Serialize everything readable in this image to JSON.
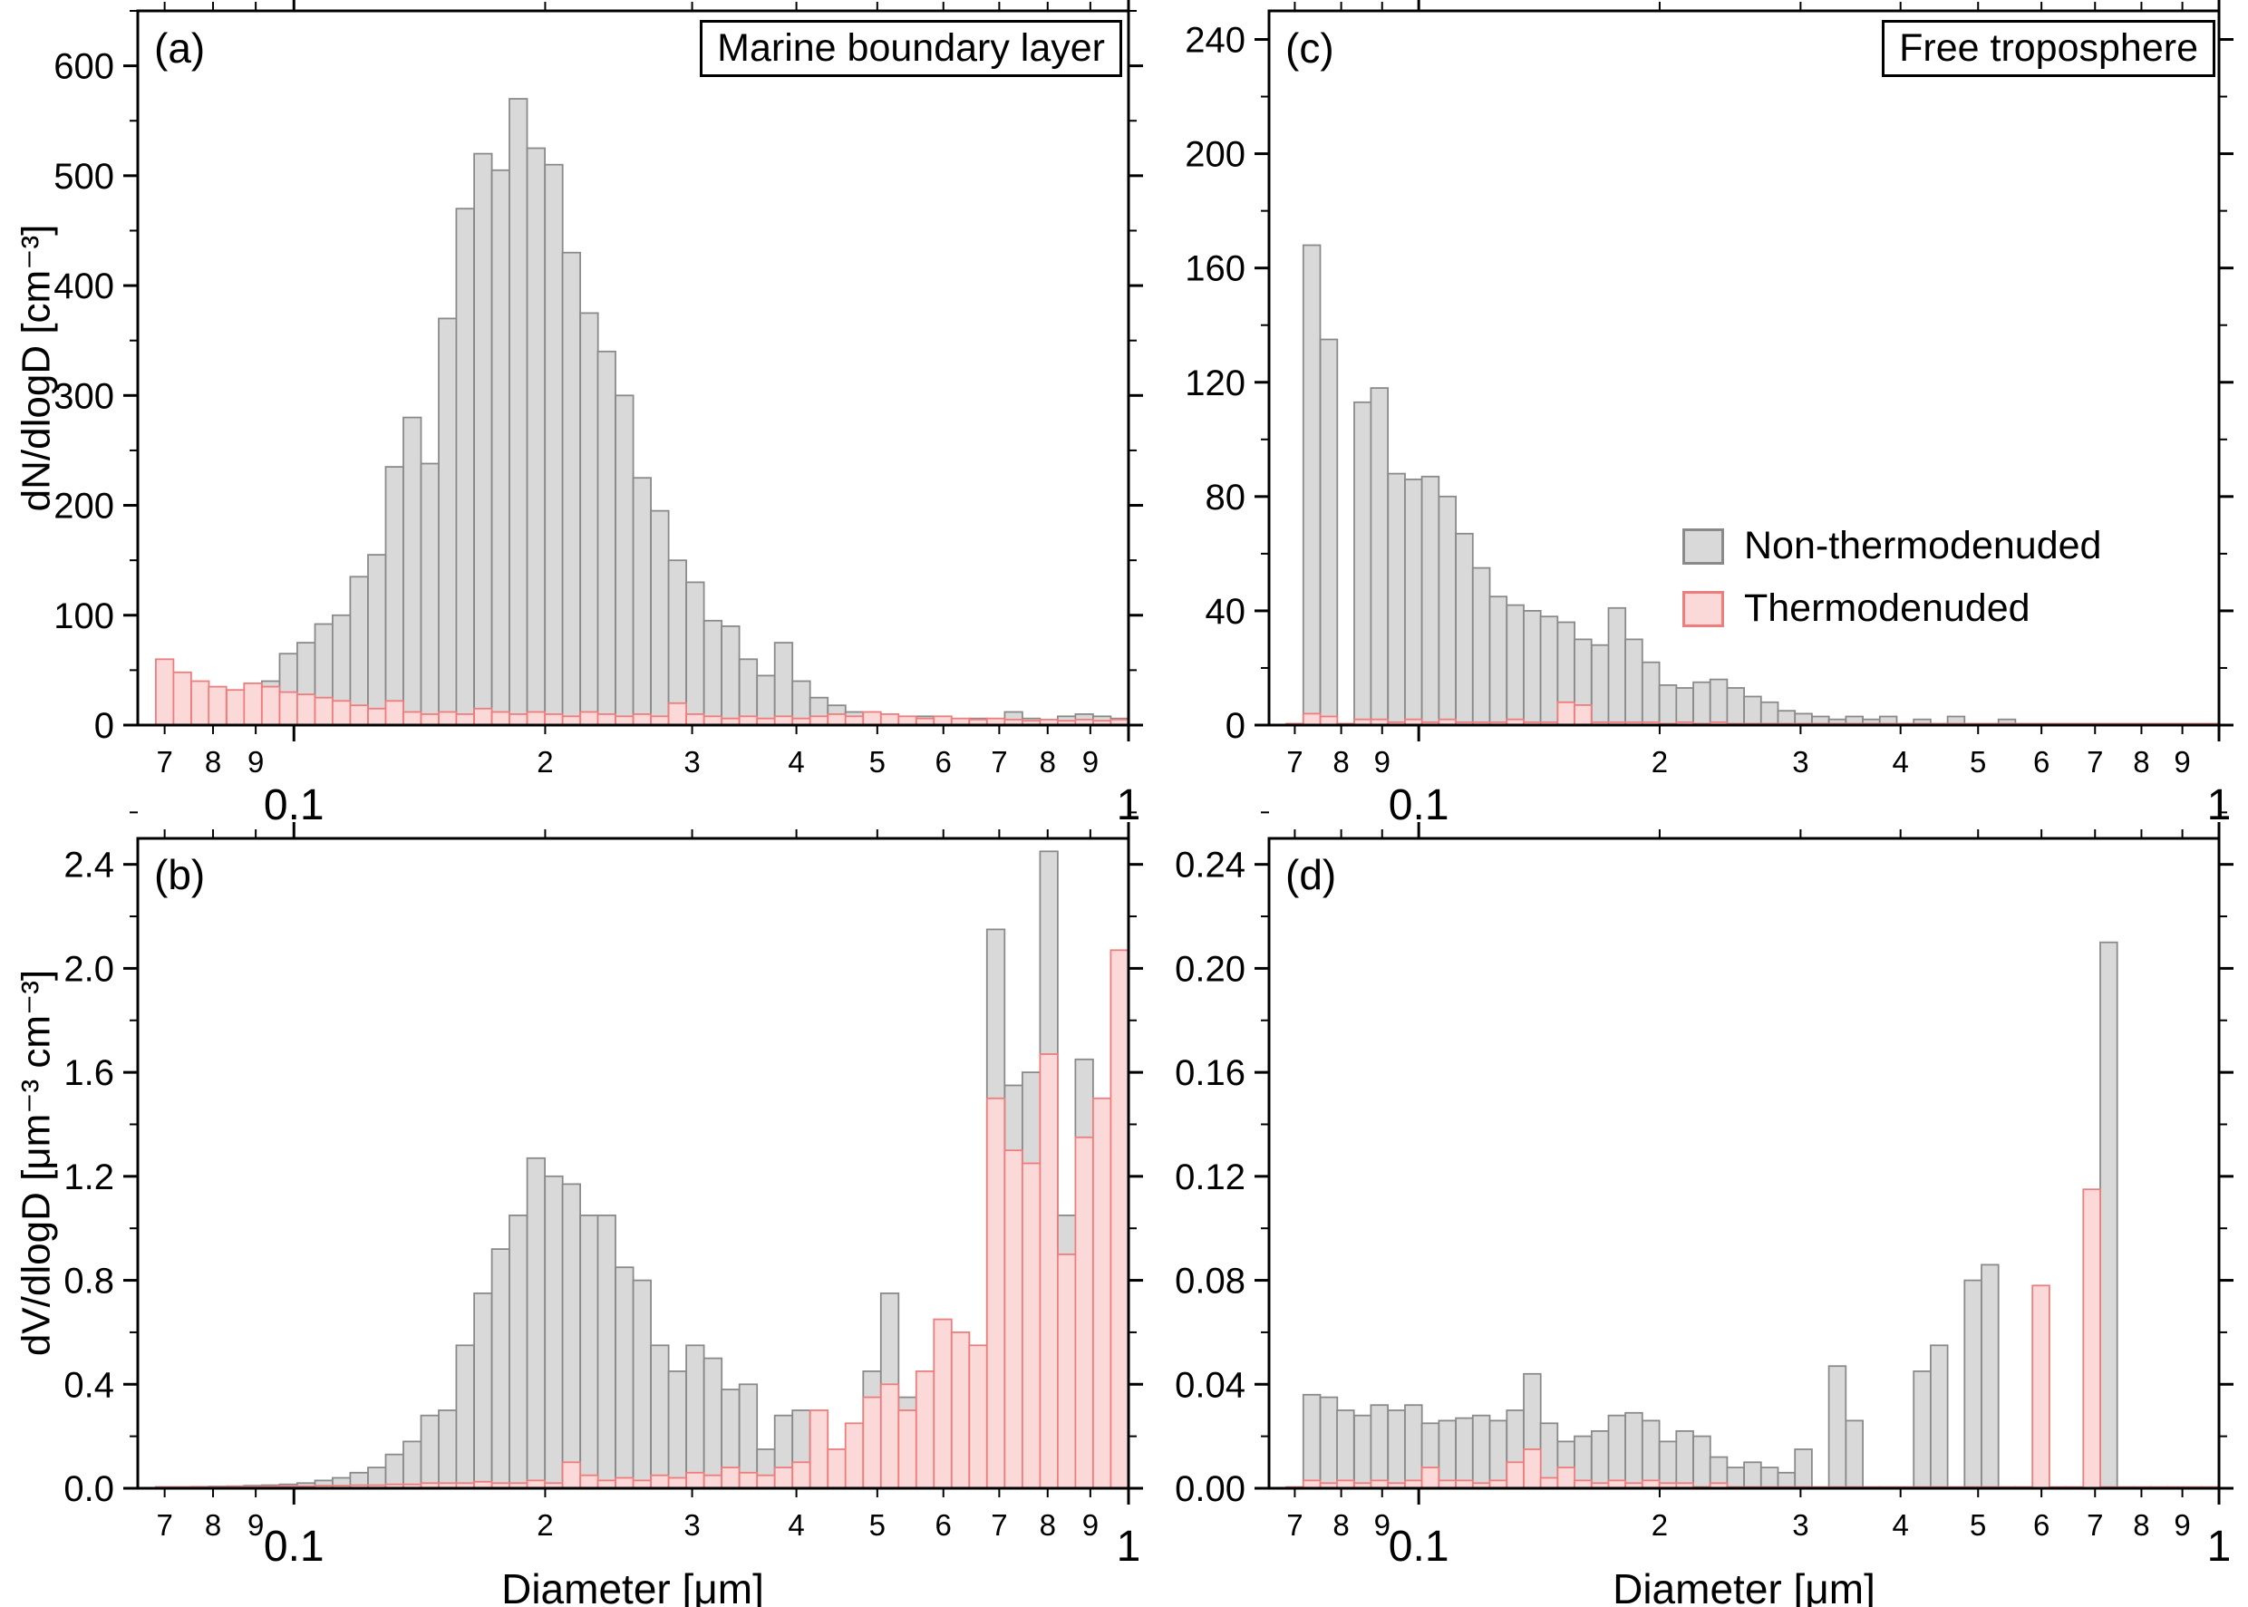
{
  "chart_data": {
    "type": "bar",
    "description": "Aerosol size distributions, 2x2 histogram panels on log x-axes",
    "xlabel": "Diameter [μm]",
    "legend": {
      "items": [
        {
          "label": "Non-thermodenuded"
        },
        {
          "label": "Thermodenuded"
        }
      ],
      "position": "panel-c-middle-right"
    },
    "colors": {
      "non_thermodenuded_fill": "#d9d9d9",
      "non_thermodenuded_stroke": "#8a8a8a",
      "thermodenuded_fill": "#fbd9d9",
      "thermodenuded_stroke": "#ee7d7d",
      "axis": "#000000"
    },
    "x_axis": {
      "scale": "log",
      "range": [
        0.065,
        1.0
      ],
      "major_ticks": {
        "values": [
          0.1,
          1
        ],
        "labels": [
          "0.1",
          "1"
        ]
      },
      "minor_ticks": {
        "values": [
          0.07,
          0.08,
          0.09,
          0.2,
          0.3,
          0.4,
          0.5,
          0.6,
          0.7,
          0.8,
          0.9
        ],
        "labels": [
          "7",
          "8",
          "9",
          "2",
          "3",
          "4",
          "5",
          "6",
          "7",
          "8",
          "9"
        ]
      }
    },
    "x_bins": [
      0.07,
      0.0735,
      0.0772,
      0.081,
      0.0851,
      0.0893,
      0.0938,
      0.0985,
      0.1034,
      0.1086,
      0.114,
      0.1197,
      0.1257,
      0.132,
      0.1386,
      0.1455,
      0.1528,
      0.1604,
      0.1685,
      0.1769,
      0.1857,
      0.195,
      0.2048,
      0.215,
      0.2258,
      0.237,
      0.2489,
      0.2613,
      0.2744,
      0.2881,
      0.3025,
      0.3177,
      0.3335,
      0.3502,
      0.3677,
      0.3861,
      0.4054,
      0.4257,
      0.447,
      0.4693,
      0.4928,
      0.5174,
      0.5433,
      0.5705,
      0.599,
      0.6289,
      0.6604,
      0.6934,
      0.7281,
      0.7645,
      0.8027,
      0.8428,
      0.885,
      0.9292,
      0.9757
    ],
    "panels": [
      {
        "id": "a",
        "label": "(a)",
        "title": "Marine boundary layer",
        "ylabel": "dN/dlogD [cm⁻³]",
        "ylim": [
          0,
          650
        ],
        "yminor_step": 50,
        "yticks": {
          "values": [
            0,
            100,
            200,
            300,
            400,
            500,
            600
          ],
          "labels": [
            "0",
            "100",
            "200",
            "300",
            "400",
            "500",
            "600"
          ]
        },
        "series": [
          {
            "name": "Non-thermodenuded",
            "values": [
              8,
              10,
              14,
              18,
              25,
              32,
              40,
              65,
              75,
              92,
              100,
              135,
              155,
              235,
              280,
              238,
              370,
              470,
              520,
              505,
              570,
              525,
              510,
              430,
              375,
              340,
              300,
              225,
              195,
              150,
              130,
              95,
              90,
              60,
              45,
              75,
              40,
              25,
              18,
              12,
              10,
              8,
              6,
              8,
              6,
              5,
              6,
              5,
              12,
              6,
              5,
              8,
              10,
              8,
              6
            ]
          },
          {
            "name": "Thermodenuded",
            "values": [
              60,
              48,
              40,
              35,
              32,
              38,
              35,
              30,
              28,
              25,
              22,
              18,
              15,
              22,
              12,
              10,
              12,
              10,
              15,
              12,
              10,
              12,
              10,
              8,
              12,
              10,
              8,
              10,
              8,
              20,
              10,
              8,
              6,
              8,
              6,
              8,
              6,
              8,
              10,
              8,
              12,
              10,
              8,
              6,
              8,
              6,
              5,
              6,
              5,
              4,
              5,
              4,
              5,
              4,
              5
            ]
          }
        ]
      },
      {
        "id": "b",
        "label": "(b)",
        "title": "",
        "ylabel": "dV/dlogD [μm⁻³ cm⁻³]",
        "ylim": [
          0,
          2.5
        ],
        "yminor_step": 0.2,
        "yticks": {
          "values": [
            0,
            0.4,
            0.8,
            1.2,
            1.6,
            2.0,
            2.4
          ],
          "labels": [
            "0.0",
            "0.4",
            "0.8",
            "1.2",
            "1.6",
            "2.0",
            "2.4"
          ]
        },
        "series": [
          {
            "name": "Non-thermodenuded",
            "values": [
              0.005,
              0.005,
              0.006,
              0.007,
              0.008,
              0.01,
              0.012,
              0.015,
              0.02,
              0.03,
              0.04,
              0.06,
              0.08,
              0.13,
              0.18,
              0.28,
              0.3,
              0.55,
              0.75,
              0.92,
              1.05,
              1.27,
              1.2,
              1.17,
              1.05,
              1.05,
              0.85,
              0.8,
              0.55,
              0.45,
              0.55,
              0.5,
              0.38,
              0.4,
              0.15,
              0.28,
              0.3,
              0.22,
              0.1,
              0.15,
              0.45,
              0.75,
              0.35,
              0.2,
              0.35,
              0.6,
              0.35,
              2.15,
              1.55,
              1.6,
              2.45,
              1.05,
              1.65,
              1.3,
              0.9
            ]
          },
          {
            "name": "Thermodenuded",
            "values": [
              0.005,
              0.005,
              0.005,
              0.005,
              0.006,
              0.006,
              0.007,
              0.008,
              0.008,
              0.01,
              0.01,
              0.012,
              0.012,
              0.015,
              0.015,
              0.02,
              0.02,
              0.02,
              0.025,
              0.02,
              0.02,
              0.03,
              0.02,
              0.1,
              0.05,
              0.03,
              0.04,
              0.03,
              0.05,
              0.04,
              0.06,
              0.05,
              0.08,
              0.06,
              0.05,
              0.08,
              0.1,
              0.3,
              0.15,
              0.25,
              0.35,
              0.4,
              0.3,
              0.45,
              0.65,
              0.6,
              0.55,
              1.5,
              1.3,
              1.25,
              1.67,
              0.9,
              1.35,
              1.5,
              2.07
            ]
          }
        ]
      },
      {
        "id": "c",
        "label": "(c)",
        "title": "Free troposphere",
        "ylabel": "",
        "ylim": [
          0,
          250
        ],
        "yminor_step": 20,
        "yticks": {
          "values": [
            0,
            40,
            80,
            120,
            160,
            200,
            240
          ],
          "labels": [
            "0",
            "40",
            "80",
            "120",
            "160",
            "200",
            "240"
          ]
        },
        "series": [
          {
            "name": "Non-thermodenuded",
            "values": [
              0,
              168,
              135,
              0,
              113,
              118,
              88,
              86,
              87,
              80,
              67,
              55,
              45,
              42,
              40,
              38,
              36,
              30,
              28,
              41,
              30,
              22,
              14,
              13,
              15,
              16,
              13,
              10,
              8,
              5,
              4,
              3,
              2,
              3,
              2,
              3,
              0,
              2,
              0,
              3,
              0,
              0,
              2,
              0,
              0,
              0,
              0,
              0,
              0,
              0,
              0,
              0,
              0,
              0,
              0
            ]
          },
          {
            "name": "Thermodenuded",
            "values": [
              0.5,
              4,
              3,
              0.5,
              2,
              2,
              1,
              2,
              1,
              2,
              1,
              1,
              1,
              2,
              1,
              1,
              8,
              7,
              1,
              1,
              1,
              1,
              0.5,
              1,
              0.5,
              1,
              0.5,
              0.5,
              0.5,
              0.5,
              0.5,
              0.5,
              0.5,
              0.5,
              0.5,
              0.5,
              0.5,
              0.5,
              0.5,
              0.5,
              0.5,
              0.5,
              0.5,
              0.5,
              0.5,
              0.5,
              0.5,
              0.5,
              0.5,
              0.5,
              0.5,
              0.5,
              0.5,
              0.5,
              0.5
            ]
          }
        ]
      },
      {
        "id": "d",
        "label": "(d)",
        "title": "",
        "ylabel": "",
        "ylim": [
          0,
          0.25
        ],
        "yminor_step": 0.02,
        "yticks": {
          "values": [
            0,
            0.04,
            0.08,
            0.12,
            0.16,
            0.2,
            0.24
          ],
          "labels": [
            "0.00",
            "0.04",
            "0.08",
            "0.12",
            "0.16",
            "0.20",
            "0.24"
          ]
        },
        "series": [
          {
            "name": "Non-thermodenuded",
            "values": [
              0,
              0.036,
              0.035,
              0.03,
              0.028,
              0.032,
              0.03,
              0.032,
              0.025,
              0.026,
              0.027,
              0.028,
              0.026,
              0.03,
              0.044,
              0.025,
              0.018,
              0.02,
              0.022,
              0.028,
              0.029,
              0.026,
              0.018,
              0.022,
              0.02,
              0.012,
              0.008,
              0.01,
              0.008,
              0.006,
              0.015,
              0,
              0.047,
              0.026,
              0,
              0,
              0,
              0.045,
              0.055,
              0,
              0.08,
              0.086,
              0,
              0,
              0,
              0,
              0,
              0,
              0.21,
              0,
              0,
              0,
              0,
              0,
              0
            ]
          },
          {
            "name": "Thermodenuded",
            "values": [
              0.0005,
              0.003,
              0.002,
              0.003,
              0.002,
              0.003,
              0.002,
              0.003,
              0.008,
              0.003,
              0.003,
              0.002,
              0.003,
              0.01,
              0.015,
              0.004,
              0.008,
              0.003,
              0.002,
              0.003,
              0.002,
              0.003,
              0.002,
              0.002,
              0.0005,
              0.002,
              0.0005,
              0.0005,
              0.0005,
              0.0005,
              0.0005,
              0.0005,
              0.0005,
              0.0005,
              0.0005,
              0.0005,
              0.0005,
              0.0005,
              0.0005,
              0.0005,
              0.0005,
              0.0005,
              0.0005,
              0.0005,
              0.078,
              0.0005,
              0.0005,
              0.115,
              0.0005,
              0.0005,
              0.0005,
              0.0005,
              0.0005,
              0.0005,
              0.0005
            ]
          }
        ]
      }
    ]
  }
}
